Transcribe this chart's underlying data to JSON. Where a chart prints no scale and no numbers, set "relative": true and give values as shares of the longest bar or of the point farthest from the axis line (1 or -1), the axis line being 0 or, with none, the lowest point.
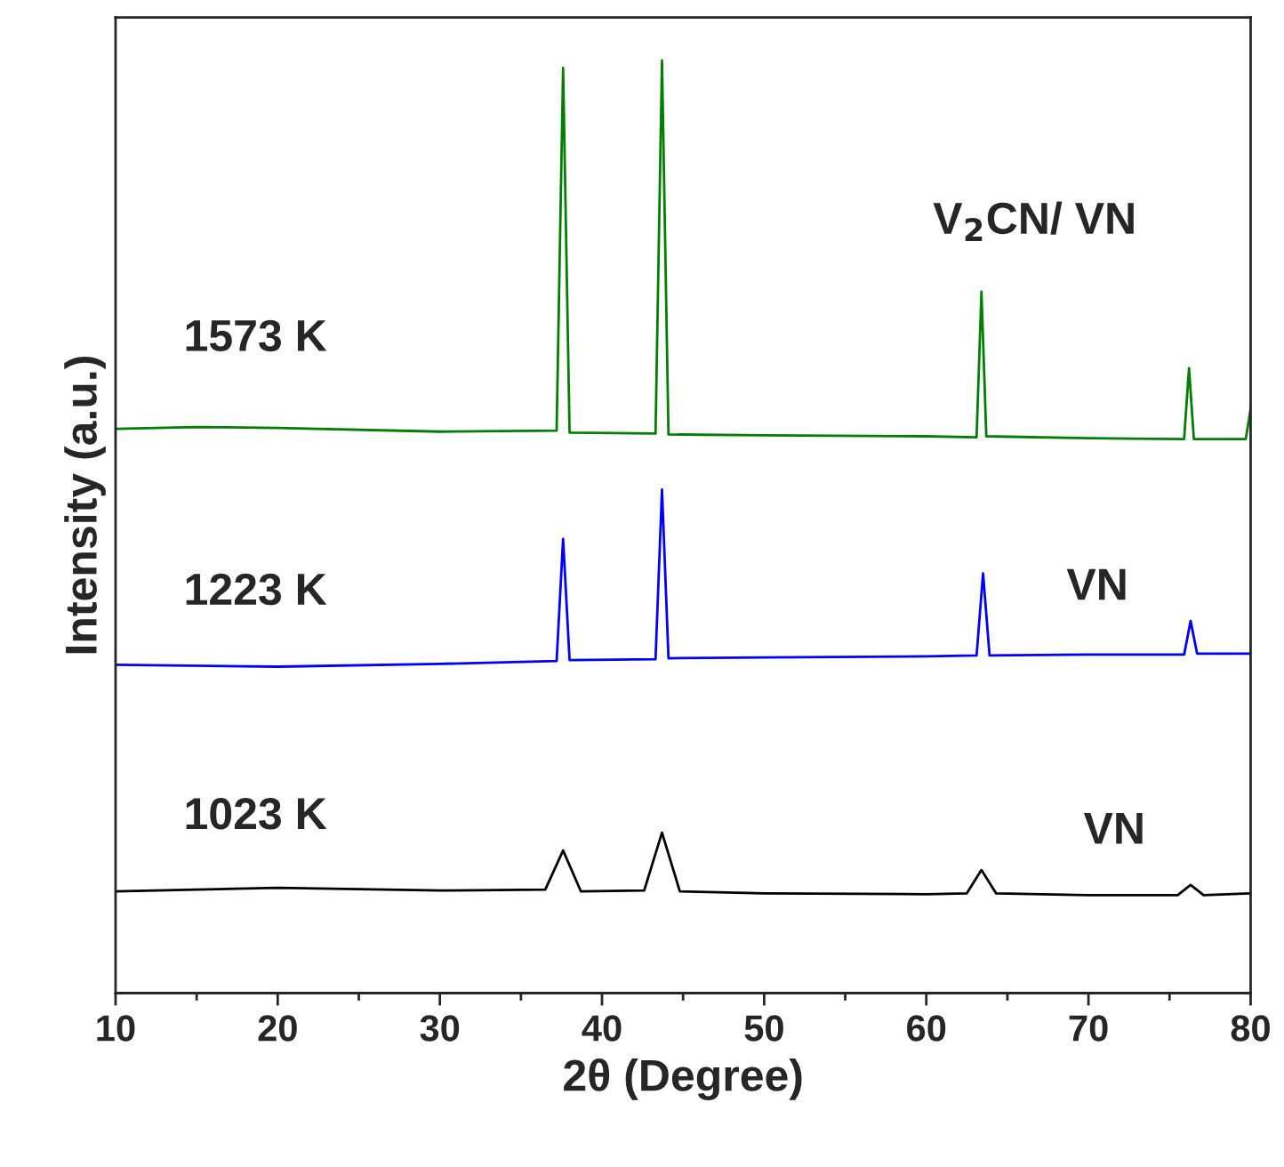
{
  "chart_data": {
    "type": "line",
    "relative": true,
    "xlabel": "2θ (Degree)",
    "ylabel": "Intensity (a.u.)",
    "xlim": [
      10,
      80
    ],
    "xticks": [
      10,
      20,
      30,
      40,
      50,
      60,
      70,
      80
    ],
    "legend": false,
    "grid": false,
    "tick_labels": "x",
    "series": [
      {
        "name": "1023 K",
        "color": "#000000",
        "x": [
          10,
          20,
          30,
          36.5,
          37.6,
          38.7,
          42.6,
          43.7,
          44.8,
          50,
          60,
          62.5,
          63.4,
          64.3,
          70,
          75.5,
          76.3,
          77.1,
          80
        ],
        "values": [
          0.109,
          0.113,
          0.11,
          0.111,
          0.153,
          0.109,
          0.11,
          0.172,
          0.109,
          0.107,
          0.106,
          0.107,
          0.132,
          0.107,
          0.105,
          0.105,
          0.116,
          0.105,
          0.107
        ]
      },
      {
        "name": "1223 K",
        "color": "#0000ff",
        "x": [
          10,
          20,
          30,
          37.2,
          37.6,
          38.0,
          43.3,
          43.7,
          44.1,
          50,
          60,
          63.1,
          63.5,
          63.9,
          70,
          75.9,
          76.3,
          76.7,
          80
        ],
        "values": [
          0.352,
          0.35,
          0.353,
          0.356,
          0.487,
          0.357,
          0.358,
          0.54,
          0.359,
          0.36,
          0.361,
          0.362,
          0.45,
          0.362,
          0.363,
          0.363,
          0.399,
          0.364,
          0.364
        ]
      },
      {
        "name": "1573 K",
        "color": "#008000",
        "x": [
          10,
          15,
          20,
          30,
          37.2,
          37.6,
          38.0,
          43.3,
          43.7,
          44.1,
          50,
          60,
          63.1,
          63.4,
          63.7,
          70,
          75.9,
          76.2,
          76.5,
          79.7,
          80
        ],
        "values": [
          0.605,
          0.607,
          0.606,
          0.602,
          0.603,
          0.992,
          0.601,
          0.6,
          1.0,
          0.599,
          0.598,
          0.597,
          0.596,
          0.752,
          0.597,
          0.595,
          0.594,
          0.67,
          0.594,
          0.594,
          0.626
        ]
      }
    ],
    "annotations": [
      "VN",
      "VN",
      "V$_{2}$CN/ VN"
    ]
  }
}
